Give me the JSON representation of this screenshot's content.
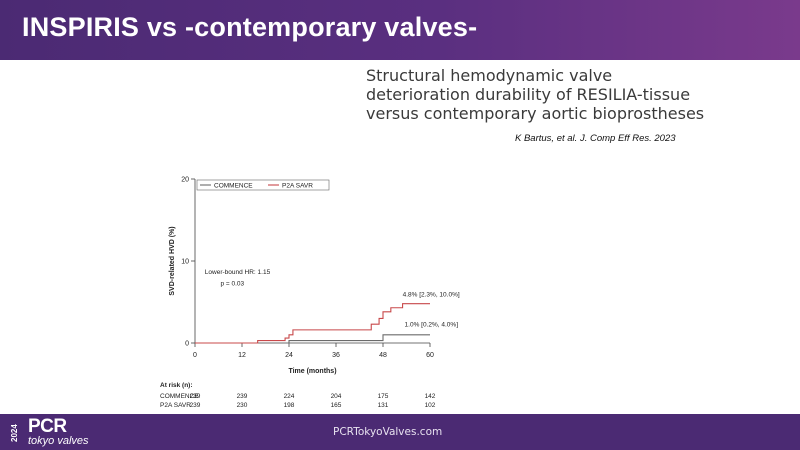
{
  "slide": {
    "title": "INSPIRIS vs -contemporary valves-",
    "subtitle_lines": [
      "Structural hemodynamic valve",
      "deterioration durability of RESILIA-tissue",
      "versus contemporary aortic bioprostheses"
    ],
    "citation": "K Bartus, et al. J. Comp Eff Res. 2023"
  },
  "footer": {
    "year": "2024",
    "logo": "PCR",
    "tagline": "tokyo valves",
    "url": "PCRTokyoValves.com"
  },
  "colors": {
    "header": "#4b2a73",
    "commence": "#6b6b6b",
    "p2a": "#c8484a"
  },
  "chart_data": {
    "type": "line",
    "step": true,
    "xlabel": "Time (months)",
    "ylabel": "SVD-related HVD (%)",
    "xlim": [
      0,
      60
    ],
    "ylim": [
      0,
      20
    ],
    "xticks": [
      0,
      12,
      24,
      36,
      48,
      60
    ],
    "yticks": [
      0,
      10,
      20
    ],
    "legend": [
      "COMMENCE",
      "P2A SAVR"
    ],
    "legend_position": "top-left",
    "series": [
      {
        "name": "COMMENCE",
        "color": "#6b6b6b",
        "points": [
          [
            0,
            0
          ],
          [
            24,
            0
          ],
          [
            24,
            0.3
          ],
          [
            48,
            0.3
          ],
          [
            48,
            1.0
          ],
          [
            60,
            1.0
          ]
        ]
      },
      {
        "name": "P2A SAVR",
        "color": "#c8484a",
        "points": [
          [
            0,
            0
          ],
          [
            16,
            0
          ],
          [
            16,
            0.3
          ],
          [
            23,
            0.3
          ],
          [
            23,
            0.6
          ],
          [
            24,
            0.6
          ],
          [
            24,
            1.0
          ],
          [
            25,
            1.0
          ],
          [
            25,
            1.6
          ],
          [
            45,
            1.6
          ],
          [
            45,
            2.3
          ],
          [
            47,
            2.3
          ],
          [
            47,
            3.0
          ],
          [
            48,
            3.0
          ],
          [
            48,
            3.8
          ],
          [
            50,
            3.8
          ],
          [
            50,
            4.3
          ],
          [
            53,
            4.3
          ],
          [
            53,
            4.8
          ],
          [
            60,
            4.8
          ]
        ]
      }
    ],
    "annotations": [
      {
        "text": "Lower-bound HR: 1.15",
        "x": 2.5,
        "y": 8.4
      },
      {
        "text": "p = 0.03",
        "x": 6.5,
        "y": 7.0
      },
      {
        "text": "4.8% [2.3%, 10.0%]",
        "x": 53,
        "y": 5.7
      },
      {
        "text": "1.0% [0.2%, 4.0%]",
        "x": 53.5,
        "y": 2.0
      }
    ],
    "at_risk": {
      "label": "At risk (n):",
      "times": [
        0,
        12,
        24,
        36,
        48,
        60
      ],
      "rows": [
        {
          "name": "COMMENCE",
          "values": [
            239,
            239,
            224,
            204,
            175,
            142
          ]
        },
        {
          "name": "P2A SAVR",
          "values": [
            239,
            230,
            198,
            165,
            131,
            102
          ]
        }
      ]
    }
  }
}
